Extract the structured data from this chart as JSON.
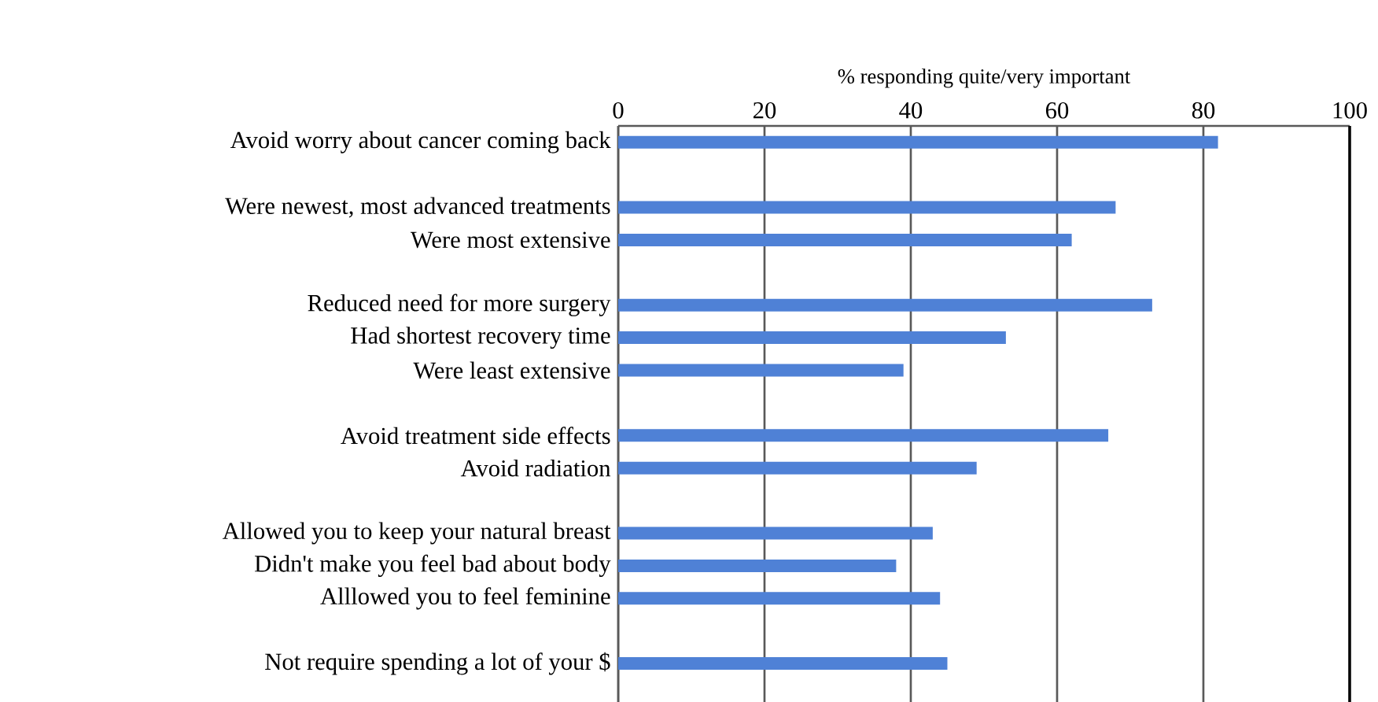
{
  "chart_data": {
    "type": "bar",
    "orientation": "horizontal",
    "xlabel": "% responding quite/very important",
    "categories": [
      "Avoid worry about cancer coming back",
      null,
      "Were newest, most advanced treatments",
      "Were most extensive",
      null,
      "Reduced need for more surgery",
      "Had shortest recovery time",
      "Were least extensive",
      null,
      "Avoid treatment side effects",
      "Avoid radiation",
      null,
      "Allowed you to keep your natural breast",
      "Didn't make you feel bad about body",
      "Alllowed you to feel feminine",
      null,
      "Not require spending a lot of your $"
    ],
    "values": [
      82,
      null,
      68,
      62,
      null,
      73,
      53,
      39,
      null,
      67,
      49,
      null,
      43,
      38,
      44,
      null,
      45
    ],
    "color": "#4f81d6",
    "xlim": [
      0,
      100
    ],
    "xticks": [
      0,
      20,
      40,
      60,
      80,
      100
    ],
    "grid": "x"
  }
}
